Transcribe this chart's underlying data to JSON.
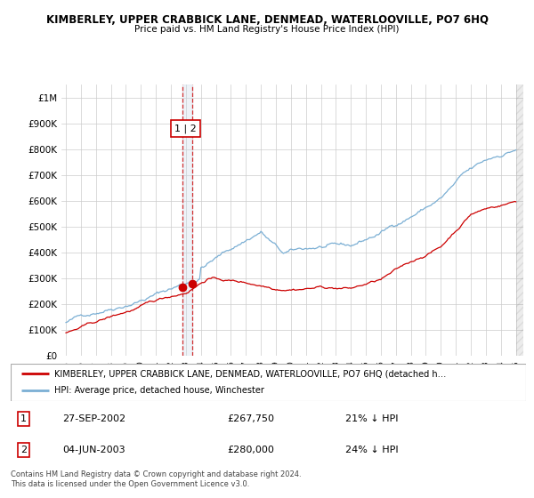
{
  "title": "KIMBERLEY, UPPER CRABBICK LANE, DENMEAD, WATERLOOVILLE, PO7 6HQ",
  "subtitle": "Price paid vs. HM Land Registry's House Price Index (HPI)",
  "ylim": [
    0,
    1050000
  ],
  "legend_line1": "KIMBERLEY, UPPER CRABBICK LANE, DENMEAD, WATERLOOVILLE, PO7 6HQ (detached h…",
  "legend_line2": "HPI: Average price, detached house, Winchester",
  "sale1_label": "1",
  "sale1_date": "27-SEP-2002",
  "sale1_price": "£267,750",
  "sale1_hpi": "21% ↓ HPI",
  "sale2_label": "2",
  "sale2_date": "04-JUN-2003",
  "sale2_price": "£280,000",
  "sale2_hpi": "24% ↓ HPI",
  "footer": "Contains HM Land Registry data © Crown copyright and database right 2024.\nThis data is licensed under the Open Government Licence v3.0.",
  "red_color": "#cc0000",
  "blue_color": "#7bafd4",
  "vline_color": "#cc0000",
  "vband_color": "#c8d8e8",
  "sale1_x": 2002.75,
  "sale1_y": 267750,
  "sale2_x": 2003.42,
  "sale2_y": 280000,
  "vline1_x": 2002.75,
  "vline2_x": 2003.42,
  "xlim_left": 1994.7,
  "xlim_right": 2025.5
}
